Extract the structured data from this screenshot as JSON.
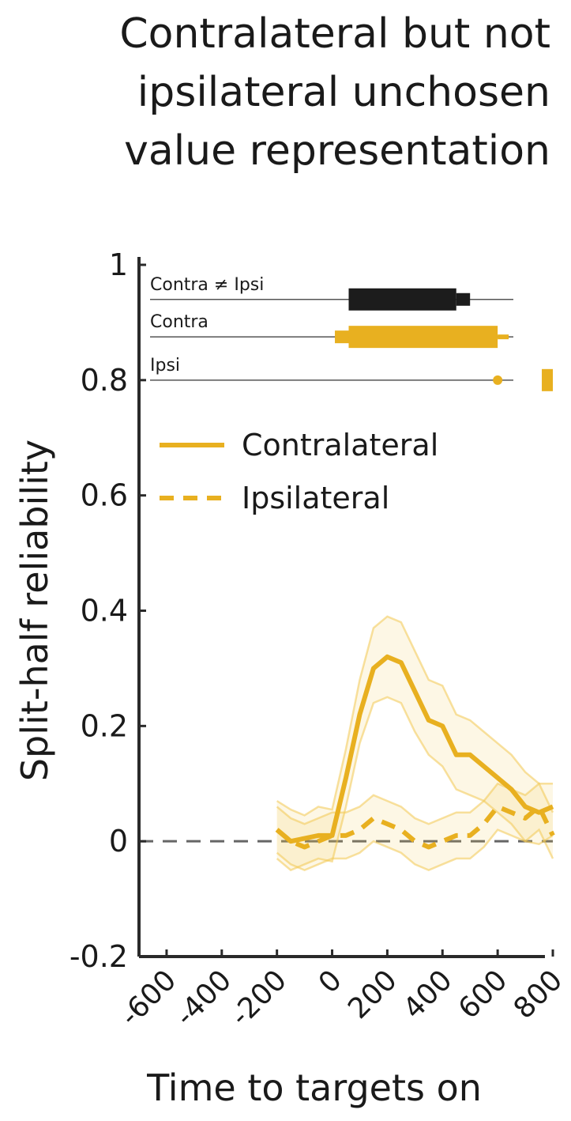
{
  "title_lines": [
    "Contralateral but not",
    "ipsilateral unchosen",
    "value representation"
  ],
  "colors": {
    "series": "#E8B020",
    "band": "#F3C852",
    "sig_black": "#1c1c1c",
    "axis": "#2a2a2a",
    "zero_line": "#666666"
  },
  "chart_data": {
    "type": "line",
    "title": "Contralateral but not ipsilateral unchosen value representation",
    "xlabel": "Time to targets on",
    "ylabel": "Split-half reliability",
    "xlim": [
      -700,
      800
    ],
    "ylim": [
      -0.2,
      1.0
    ],
    "x_ticks": [
      -600,
      -400,
      -200,
      0,
      200,
      400,
      600,
      800
    ],
    "x_tick_labels": [
      "-600",
      "-400",
      "-200",
      "0",
      "200",
      "400",
      "600",
      "800"
    ],
    "y_ticks": [
      -0.2,
      0,
      0.2,
      0.4,
      0.6,
      0.8,
      1.0
    ],
    "y_tick_labels": [
      "-0.2",
      "0",
      "0.2",
      "0.4",
      "0.6",
      "0.8",
      "1"
    ],
    "zero_line": {
      "y": 0,
      "style": "dashed"
    },
    "legend": [
      {
        "name": "Contralateral",
        "style": "solid"
      },
      {
        "name": "Ipsilateral",
        "style": "dashed"
      }
    ],
    "series": [
      {
        "name": "Contralateral",
        "style": "solid",
        "x": [
          -200,
          -150,
          -100,
          -50,
          0,
          50,
          100,
          150,
          200,
          250,
          300,
          350,
          400,
          450,
          500,
          550,
          600,
          650,
          700,
          750,
          800
        ],
        "y": [
          0.02,
          0.0,
          0.005,
          0.01,
          0.01,
          0.11,
          0.22,
          0.3,
          0.32,
          0.31,
          0.26,
          0.21,
          0.2,
          0.15,
          0.15,
          0.13,
          0.11,
          0.09,
          0.06,
          0.05,
          0.06
        ],
        "upper": [
          0.07,
          0.055,
          0.045,
          0.06,
          0.055,
          0.16,
          0.28,
          0.37,
          0.39,
          0.38,
          0.33,
          0.28,
          0.27,
          0.22,
          0.21,
          0.19,
          0.17,
          0.15,
          0.12,
          0.1,
          0.1
        ],
        "lower": [
          -0.03,
          -0.05,
          -0.04,
          -0.03,
          -0.035,
          0.06,
          0.17,
          0.24,
          0.25,
          0.24,
          0.19,
          0.15,
          0.13,
          0.09,
          0.08,
          0.07,
          0.05,
          0.03,
          0.0,
          -0.005,
          0.01
        ]
      },
      {
        "name": "Ipsilateral",
        "style": "dashed",
        "x": [
          -200,
          -150,
          -100,
          -50,
          0,
          50,
          100,
          150,
          200,
          250,
          300,
          350,
          400,
          450,
          500,
          550,
          600,
          650,
          700,
          750,
          800
        ],
        "y": [
          0.02,
          0.0,
          -0.01,
          0.0,
          0.01,
          0.01,
          0.02,
          0.04,
          0.03,
          0.02,
          0.0,
          -0.01,
          0.0,
          0.01,
          0.01,
          0.03,
          0.06,
          0.05,
          0.04,
          0.06,
          0.01
        ],
        "upper": [
          0.06,
          0.04,
          0.03,
          0.04,
          0.05,
          0.05,
          0.06,
          0.08,
          0.07,
          0.06,
          0.04,
          0.03,
          0.04,
          0.05,
          0.05,
          0.07,
          0.1,
          0.09,
          0.08,
          0.1,
          0.05
        ],
        "lower": [
          -0.02,
          -0.04,
          -0.05,
          -0.04,
          -0.03,
          -0.03,
          -0.02,
          0.0,
          -0.01,
          -0.02,
          -0.04,
          -0.05,
          -0.04,
          -0.03,
          -0.03,
          -0.01,
          0.02,
          0.01,
          0.0,
          0.02,
          -0.03
        ]
      }
    ],
    "significance_rows": [
      {
        "label": "Contra ≠ Ipsi",
        "color": "black",
        "y": 0.94,
        "segments": [
          {
            "from": 60,
            "to": 450,
            "weight": "thick"
          },
          {
            "from": 450,
            "to": 500,
            "weight": "medium"
          }
        ]
      },
      {
        "label": "Contra",
        "color": "gold",
        "y": 0.875,
        "segments": [
          {
            "from": 10,
            "to": 60,
            "weight": "medium"
          },
          {
            "from": 60,
            "to": 600,
            "weight": "thick"
          },
          {
            "from": 600,
            "to": 640,
            "weight": "thin"
          }
        ]
      },
      {
        "label": "Ipsi",
        "color": "gold",
        "y": 0.8,
        "segments": [
          {
            "from": 595,
            "to": 605,
            "weight": "dot"
          },
          {
            "from": 760,
            "to": 800,
            "weight": "thick"
          }
        ]
      }
    ]
  }
}
